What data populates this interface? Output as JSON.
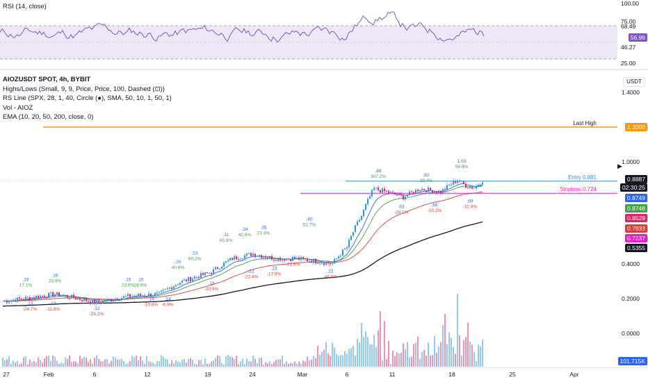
{
  "rsi": {
    "title": "RSI (14, close)",
    "axis_labels": [
      "100.00",
      "75.00",
      "25.00"
    ],
    "upper_tag": "68.49",
    "value_tag": "56.96",
    "lower_tag": "46.27",
    "colors": {
      "line": "#7e57c2",
      "band": "#ede7f6",
      "value_tag": "#7e57c2"
    }
  },
  "chart": {
    "symbol": "AIOZUSDT SPOT, 4h, BYBIT",
    "indicators": [
      "Highs/Lows (Small, 9, 9, Price, Price, 100, Dashed (⊡))",
      "RS Line (SPX, 28, 1, 40, Circle (●), SMA, 50, 10, 1, 50, 1)",
      "Vol - AIOZ",
      "EMA (10, 20, 50, 200, close, 0)"
    ],
    "currency_button": "USDT",
    "price_axis_labels": [
      "1.4000",
      "1.0000",
      "0.4000",
      "0.2000",
      "0.0000"
    ],
    "scale": "logarithmic",
    "horizontal_lines": [
      {
        "label": "Last High",
        "price": 1.2,
        "tag": "1.2000",
        "color": "#ff9800"
      },
      {
        "label": "Entry 0.881",
        "price": 0.881,
        "color": "#2196f3"
      },
      {
        "label": "Stoploss 0.724",
        "price": 0.724,
        "color": "#e91ec7"
      }
    ],
    "price_tags": [
      {
        "text": "0.8887",
        "color": "#131722"
      },
      {
        "text": "02:30:25",
        "color": "#131722"
      },
      {
        "text": "0.8749",
        "color": "#2962ff"
      },
      {
        "text": "0.8748",
        "color": "#43a047"
      },
      {
        "text": "0.8529",
        "color": "#e91e63"
      },
      {
        "text": "0.7933",
        "color": "#e53935"
      },
      {
        "text": "0.7237",
        "color": "#e91ec7"
      },
      {
        "text": "0.5355",
        "color": "#131722"
      }
    ],
    "volume_tag": "101.715K",
    "highs": [
      {
        "t": 11,
        "price": ".15",
        "pct": "17.1%"
      },
      {
        "t": 25,
        "price": ".16",
        "pct": "23.9%"
      },
      {
        "t": 60,
        "price": ".15",
        "pct": "23.6%"
      },
      {
        "t": 66,
        "price": ".15",
        "pct": "28.8%"
      },
      {
        "t": 84,
        "price": ".20",
        "pct": "40.6%"
      },
      {
        "t": 92,
        "price": ".23",
        "pct": "60.2%"
      },
      {
        "t": 107,
        "price": ".31",
        "pct": "65.9%"
      },
      {
        "t": 116,
        "price": ".34",
        "pct": "42.6%"
      },
      {
        "t": 125,
        "price": ".35",
        "pct": "23.4%"
      },
      {
        "t": 147,
        "price": ".40",
        "pct": "51.7%"
      },
      {
        "t": 180,
        "price": ".88",
        "pct": "307.2%"
      },
      {
        "t": 203,
        "price": ".82",
        "pct": "30.4%"
      },
      {
        "t": 220,
        "price": "1.03",
        "pct": "56.9%"
      }
    ],
    "lows": [
      {
        "t": 13,
        "price": ".13",
        "pct": "-24.7%"
      },
      {
        "t": 24,
        "price": ".13",
        "pct": "-11.8%"
      },
      {
        "t": 45,
        "price": ".12",
        "pct": "-25.2%"
      },
      {
        "t": 71,
        "price": ".14",
        "pct": "-10.8%"
      },
      {
        "t": 79,
        "price": ".14",
        "pct": "-6.9%"
      },
      {
        "t": 100,
        "price": ".18",
        "pct": "-20.9%"
      },
      {
        "t": 119,
        "price": ".22",
        "pct": "-22.4%"
      },
      {
        "t": 130,
        "price": ".23",
        "pct": "-17.9%"
      },
      {
        "t": 139,
        "price": ".27",
        "pct": "-31.6%"
      },
      {
        "t": 157,
        "price": ".22",
        "pct": "-46.6%"
      },
      {
        "t": 191,
        "price": ".63",
        "pct": "-28.1%"
      },
      {
        "t": 207,
        "price": ".65",
        "pct": "-20.3%"
      },
      {
        "t": 224,
        "price": ".69",
        "pct": "-32.8%"
      }
    ],
    "ema_colors": {
      "ema10": "#2962ff",
      "ema20": "#43a047",
      "ema50": "#e53935",
      "ema200": "#131722"
    },
    "candle_colors": {
      "up": "#2196f3",
      "down": "#e91e63"
    },
    "volume_colors": {
      "up": "#90caf9",
      "down": "#f48fb1"
    }
  },
  "time_axis": {
    "labels": [
      "27",
      "Feb",
      "6",
      "12",
      "19",
      "24",
      "Mar",
      "6",
      "11",
      "18",
      "25",
      "Apr"
    ]
  }
}
